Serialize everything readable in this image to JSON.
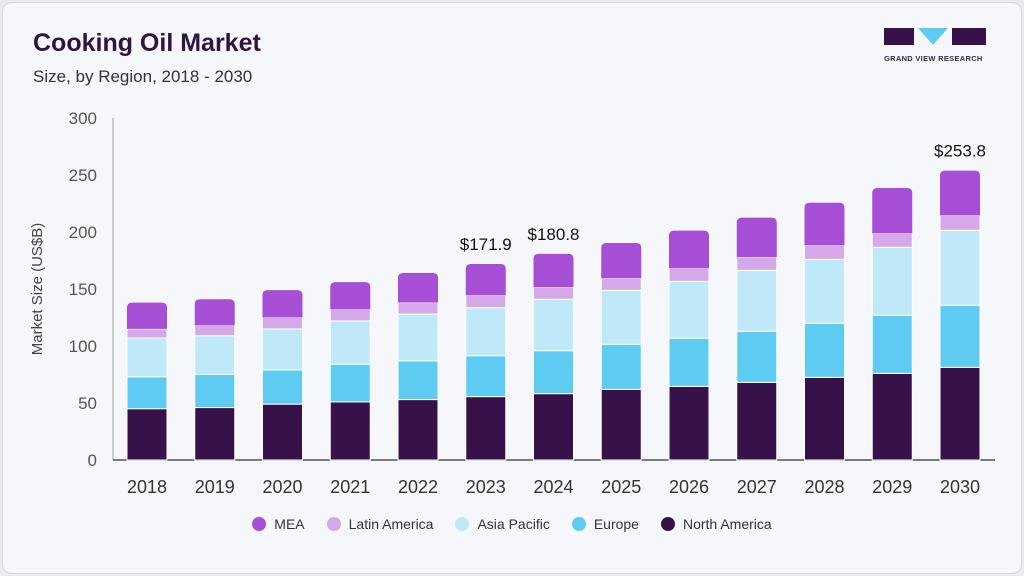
{
  "header": {
    "title": "Cooking Oil Market",
    "subtitle": "Size, by Region, 2018 - 2030"
  },
  "logo": {
    "text": "GRAND VIEW RESEARCH"
  },
  "chart_data": {
    "type": "bar",
    "stacked": true,
    "title": "Cooking Oil Market",
    "subtitle": "Size, by Region, 2018 - 2030",
    "xlabel": "",
    "ylabel": "Market Size (US$B)",
    "ylim": [
      0,
      300
    ],
    "yticks": [
      0,
      50,
      100,
      150,
      200,
      250,
      300
    ],
    "grid": false,
    "legend_position": "bottom",
    "categories": [
      "2018",
      "2019",
      "2020",
      "2021",
      "2022",
      "2023",
      "2024",
      "2025",
      "2026",
      "2027",
      "2028",
      "2029",
      "2030"
    ],
    "series": [
      {
        "name": "North America",
        "color": "#36114a",
        "values": [
          45,
          46,
          49,
          51,
          53,
          55.6,
          58.2,
          62,
          64.6,
          68.1,
          72.5,
          76,
          81.3
        ]
      },
      {
        "name": "Europe",
        "color": "#5ecbf3",
        "values": [
          28,
          29,
          30,
          33,
          34,
          35.9,
          37.7,
          39.5,
          42.1,
          44.8,
          47.4,
          50.9,
          54.4
        ]
      },
      {
        "name": "Asia Pacific",
        "color": "#bfe9f9",
        "values": [
          34,
          34,
          36,
          38,
          41,
          42.1,
          45.1,
          47.3,
          50,
          53.5,
          56.1,
          59.7,
          65.8
        ]
      },
      {
        "name": "Latin America",
        "color": "#d4a8e9",
        "values": [
          8,
          9,
          10,
          10,
          10,
          10.8,
          10.5,
          10.6,
          11.4,
          11.4,
          12.3,
          12.2,
          13.1
        ]
      },
      {
        "name": "MEA",
        "color": "#a64fd6",
        "values": [
          23,
          23,
          24,
          24,
          26,
          27.5,
          29.3,
          31,
          33.1,
          34.8,
          37.4,
          39.8,
          39.2
        ]
      }
    ],
    "data_labels": [
      {
        "category": "2023",
        "text": "$171.9"
      },
      {
        "category": "2024",
        "text": "$180.8"
      },
      {
        "category": "2030",
        "text": "$253.8"
      }
    ],
    "legend_order": [
      "MEA",
      "Latin America",
      "Asia Pacific",
      "Europe",
      "North America"
    ]
  }
}
